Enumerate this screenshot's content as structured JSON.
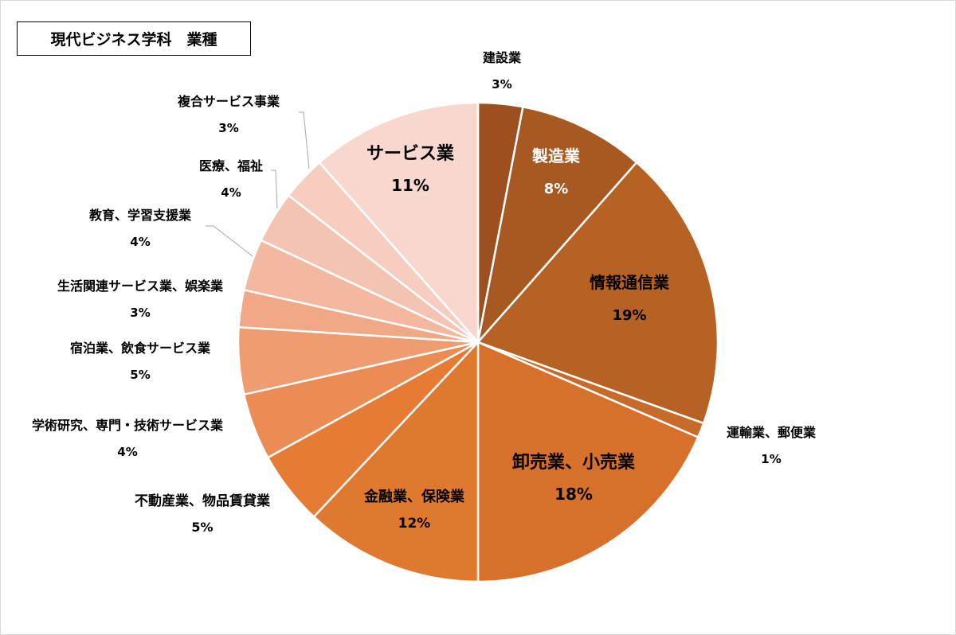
{
  "chart_data": {
    "type": "pie",
    "title": "現代ビジネス学科　業種",
    "slices": [
      {
        "name": "建設業",
        "pct_label": "3%",
        "value": 3,
        "color": "#9c4f1f"
      },
      {
        "name": "製造業",
        "pct_label": "8%",
        "value": 8.5,
        "color": "#a85921"
      },
      {
        "name": "情報通信業",
        "pct_label": "19%",
        "value": 19,
        "color": "#b66224"
      },
      {
        "name": "運輸業、郵便業",
        "pct_label": "1%",
        "value": 1,
        "color": "#c66b2a"
      },
      {
        "name": "卸売業、小売業",
        "pct_label": "18%",
        "value": 18.5,
        "color": "#d6702b"
      },
      {
        "name": "金融業、保険業",
        "pct_label": "12%",
        "value": 12,
        "color": "#e07930"
      },
      {
        "name": "不動産業、物品賃貸業",
        "pct_label": "5%",
        "value": 5,
        "color": "#e57b34"
      },
      {
        "name": "学術研究、専門・技術サービス業",
        "pct_label": "4%",
        "value": 4.5,
        "color": "#ec8c55"
      },
      {
        "name": "宿泊業、飲食サービス業",
        "pct_label": "5%",
        "value": 4.5,
        "color": "#ef9c71"
      },
      {
        "name": "生活関連サービス業、娯楽業",
        "pct_label": "3%",
        "value": 2.5,
        "color": "#f0a886"
      },
      {
        "name": "教育、学習支援業",
        "pct_label": "4%",
        "value": 3.5,
        "color": "#f2b8a0"
      },
      {
        "name": "医療、福祉",
        "pct_label": "4%",
        "value": 3.5,
        "color": "#f4c4b3"
      },
      {
        "name": "複合サービス事業",
        "pct_label": "3%",
        "value": 3,
        "color": "#f6cdbf"
      },
      {
        "name": "サービス業",
        "pct_label": "11%",
        "value": 11.5,
        "color": "#f8d8ce"
      }
    ]
  }
}
